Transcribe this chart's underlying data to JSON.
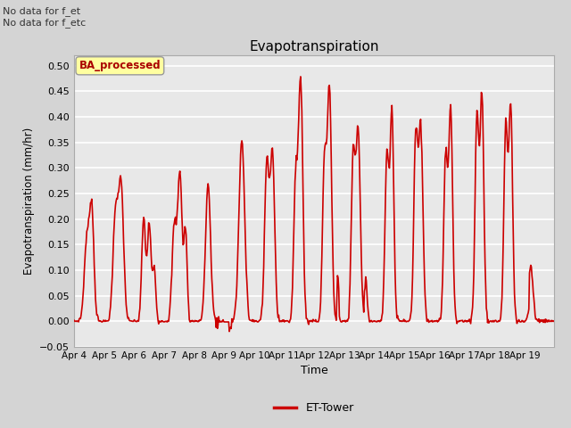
{
  "title": "Evapotranspiration",
  "xlabel": "Time",
  "ylabel": "Evapotranspiration (mm/hr)",
  "ylim": [
    -0.05,
    0.52
  ],
  "yticks": [
    -0.05,
    0.0,
    0.05,
    0.1,
    0.15,
    0.2,
    0.25,
    0.3,
    0.35,
    0.4,
    0.45,
    0.5
  ],
  "line_color": "#cc0000",
  "line_width": 1.2,
  "legend_label": "ET-Tower",
  "legend_color": "#cc0000",
  "fig_bg_color": "#d4d4d4",
  "plot_bg_color": "#e8e8e8",
  "annotation_text": "No data for f_et\nNo data for f_etc",
  "box_label": "BA_processed",
  "x_tick_labels": [
    "Apr 4",
    "Apr 5",
    "Apr 6",
    "Apr 7",
    "Apr 8",
    "Apr 9",
    "Apr 10",
    "Apr 11",
    "Apr 12",
    "Apr 13",
    "Apr 14",
    "Apr 15",
    "Apr 16",
    "Apr 17",
    "Apr 18",
    "Apr 19"
  ],
  "total_points": 768,
  "pts_per_day": 48
}
